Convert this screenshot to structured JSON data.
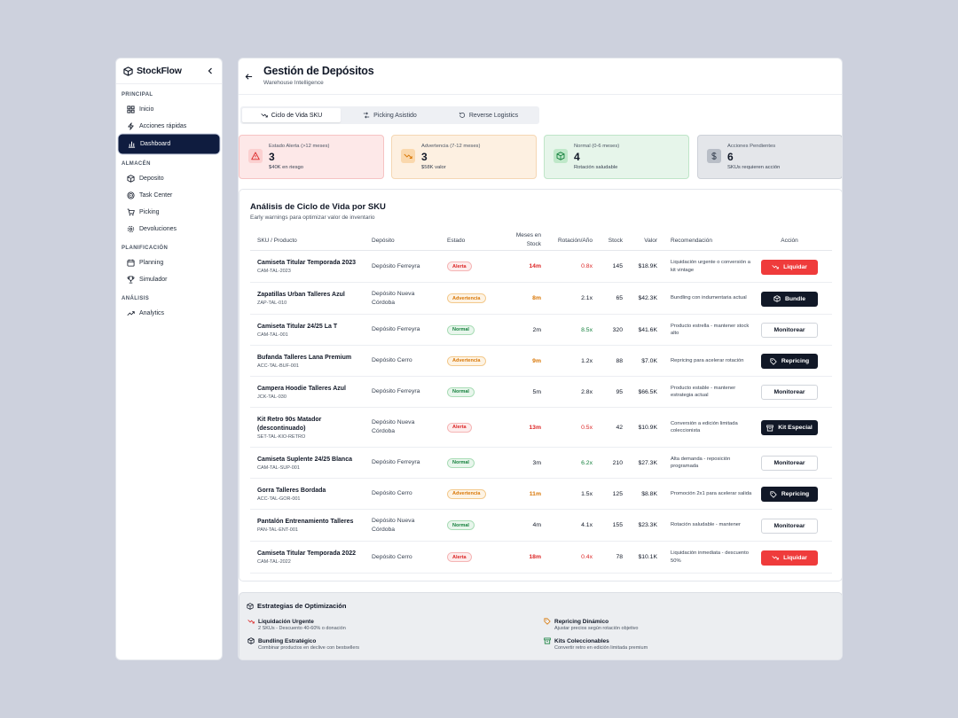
{
  "sidebar": {
    "brand": "StockFlow",
    "sections": [
      {
        "title": "PRINCIPAL",
        "items": [
          {
            "label": "Inicio",
            "icon": "grid-icon"
          },
          {
            "label": "Acciones rápidas",
            "icon": "bolt-icon"
          },
          {
            "label": "Dashboard",
            "icon": "bar-chart-icon",
            "active": true
          }
        ]
      },
      {
        "title": "ALMACÉN",
        "items": [
          {
            "label": "Deposito",
            "icon": "box-icon"
          },
          {
            "label": "Task Center",
            "icon": "target-icon"
          },
          {
            "label": "Picking",
            "icon": "cart-icon"
          },
          {
            "label": "Devoluciones",
            "icon": "gear-icon"
          }
        ]
      },
      {
        "title": "PLANIFICACIÓN",
        "items": [
          {
            "label": "Planning",
            "icon": "calendar-icon"
          },
          {
            "label": "Simulador",
            "icon": "trophy-icon"
          }
        ]
      },
      {
        "title": "ANÁLISIS",
        "items": [
          {
            "label": "Analytics",
            "icon": "trend-up-icon"
          }
        ]
      }
    ]
  },
  "header": {
    "title": "Gestión de Depósitos",
    "subtitle": "Warehouse Intelligence"
  },
  "tabs": [
    {
      "label": "Ciclo de Vida SKU",
      "icon": "trend-down-icon",
      "active": true
    },
    {
      "label": "Picking Asistido",
      "icon": "shuffle-icon"
    },
    {
      "label": "Reverse Logistics",
      "icon": "rotate-icon"
    }
  ],
  "cards": [
    {
      "label": "Estado Alerta (>12 meses)",
      "value": "3",
      "note": "$40K en riesgo",
      "icon": "warning-icon",
      "color": "#dc2626"
    },
    {
      "label": "Advertencia (7-12 meses)",
      "value": "3",
      "note": "$58K valor",
      "icon": "trend-down-icon",
      "color": "#d97706"
    },
    {
      "label": "Normal (0-6 meses)",
      "value": "4",
      "note": "Rotación saludable",
      "icon": "box-icon",
      "color": "#15803d"
    },
    {
      "label": "Acciones Pendientes",
      "value": "6",
      "note": "SKUs requieren acción",
      "icon": "dollar-icon",
      "color": "#374151"
    }
  ],
  "table": {
    "title": "Análisis de Ciclo de Vida por SKU",
    "subtitle": "Early warnings para optimizar valor de inventario",
    "columns": {
      "product": "SKU / Producto",
      "deposit": "Depósito",
      "status": "Estado",
      "months_1": "Meses en",
      "months_2": "Stock",
      "rotation": "Rotación/Año",
      "stock": "Stock",
      "value": "Valor",
      "recommendation": "Recomendación",
      "action": "Acción"
    },
    "rows": [
      {
        "name": "Camiseta Titular Temporada 2023",
        "sku": "CAM-TAL-2023",
        "deposit": "Depósito Ferreyra",
        "status": "Alerta",
        "status_type": "alert",
        "months": "14m",
        "rotation": "0.8x",
        "rotation_type": "alert",
        "stock": "145",
        "value": "$18.9K",
        "recommendation": "Liquidación urgente o conversión a kit vintage",
        "action": "Liquidar",
        "action_type": "red",
        "action_icon": "trend-down-icon"
      },
      {
        "name": "Zapatillas Urban Talleres Azul",
        "sku": "ZAP-TAL-010",
        "deposit": "Depósito Nueva Córdoba",
        "status": "Advertencia",
        "status_type": "warn",
        "months": "8m",
        "rotation": "2.1x",
        "rotation_type": "plain",
        "stock": "65",
        "value": "$42.3K",
        "recommendation": "Bundling con indumentaria actual",
        "action": "Bundle",
        "action_type": "dark",
        "action_icon": "package-icon"
      },
      {
        "name": "Camiseta Titular 24/25 La T",
        "sku": "CAM-TAL-001",
        "deposit": "Depósito Ferreyra",
        "status": "Normal",
        "status_type": "ok",
        "months": "2m",
        "rotation": "8.5x",
        "rotation_type": "ok",
        "stock": "320",
        "value": "$41.6K",
        "recommendation": "Producto estrella - mantener stock alto",
        "action": "Monitorear",
        "action_type": "light",
        "action_icon": ""
      },
      {
        "name": "Bufanda Talleres Lana Premium",
        "sku": "ACC-TAL-BUF-001",
        "deposit": "Depósito Cerro",
        "status": "Advertencia",
        "status_type": "warn",
        "months": "9m",
        "rotation": "1.2x",
        "rotation_type": "plain",
        "stock": "88",
        "value": "$7.0K",
        "recommendation": "Repricing para acelerar rotación",
        "action": "Repricing",
        "action_type": "dark",
        "action_icon": "tag-icon"
      },
      {
        "name": "Campera Hoodie Talleres Azul",
        "sku": "JCK-TAL-030",
        "deposit": "Depósito Ferreyra",
        "status": "Normal",
        "status_type": "ok",
        "months": "5m",
        "rotation": "2.8x",
        "rotation_type": "plain",
        "stock": "95",
        "value": "$66.5K",
        "recommendation": "Producto estable - mantener estrategia actual",
        "action": "Monitorear",
        "action_type": "light",
        "action_icon": ""
      },
      {
        "name": "Kit Retro 90s Matador (descontinuado)",
        "sku": "SET-TAL-KIO-RETRO",
        "deposit": "Depósito Nueva Córdoba",
        "status": "Alerta",
        "status_type": "alert",
        "months": "13m",
        "rotation": "0.5x",
        "rotation_type": "alert",
        "stock": "42",
        "value": "$10.9K",
        "recommendation": "Conversión a edición limitada coleccionista",
        "action": "Kit Especial",
        "action_type": "dark",
        "action_icon": "archive-icon"
      },
      {
        "name": "Camiseta Suplente 24/25 Blanca",
        "sku": "CAM-TAL-SUP-001",
        "deposit": "Depósito Ferreyra",
        "status": "Normal",
        "status_type": "ok",
        "months": "3m",
        "rotation": "6.2x",
        "rotation_type": "ok",
        "stock": "210",
        "value": "$27.3K",
        "recommendation": "Alta demanda - reposición programada",
        "action": "Monitorear",
        "action_type": "light",
        "action_icon": ""
      },
      {
        "name": "Gorra Talleres Bordada",
        "sku": "ACC-TAL-GOR-001",
        "deposit": "Depósito Cerro",
        "status": "Advertencia",
        "status_type": "warn",
        "months": "11m",
        "rotation": "1.5x",
        "rotation_type": "plain",
        "stock": "125",
        "value": "$8.8K",
        "recommendation": "Promoción 2x1 para acelerar salida",
        "action": "Repricing",
        "action_type": "dark",
        "action_icon": "tag-icon"
      },
      {
        "name": "Pantalón Entrenamiento Talleres",
        "sku": "PAN-TAL-ENT-001",
        "deposit": "Depósito Nueva Córdoba",
        "status": "Normal",
        "status_type": "ok",
        "months": "4m",
        "rotation": "4.1x",
        "rotation_type": "plain",
        "stock": "155",
        "value": "$23.3K",
        "recommendation": "Rotación saludable - mantener",
        "action": "Monitorear",
        "action_type": "light",
        "action_icon": ""
      },
      {
        "name": "Camiseta Titular Temporada 2022",
        "sku": "CAM-TAL-2022",
        "deposit": "Depósito Cerro",
        "status": "Alerta",
        "status_type": "alert",
        "months": "18m",
        "rotation": "0.4x",
        "rotation_type": "alert",
        "stock": "78",
        "value": "$10.1K",
        "recommendation": "Liquidación inmediata - descuento 50%",
        "action": "Liquidar",
        "action_type": "red",
        "action_icon": "trend-down-icon"
      }
    ]
  },
  "strategies": {
    "title": "Estrategias de Optimización",
    "items": [
      {
        "title": "Liquidación Urgente",
        "desc": "2 SKUs - Descuento 40-60% o donación",
        "icon": "trend-down-icon",
        "color": "#dc2626"
      },
      {
        "title": "Repricing Dinámico",
        "desc": "Ajustar precios según rotación objetivo",
        "icon": "tag-icon",
        "color": "#d97706"
      },
      {
        "title": "Bundling Estratégico",
        "desc": "Combinar productos en declive con bestsellers",
        "icon": "package-icon",
        "color": "#111827"
      },
      {
        "title": "Kits Coleccionables",
        "desc": "Convertir retro en edición limitada premium",
        "icon": "archive-icon",
        "color": "#15803d"
      }
    ]
  },
  "colors": {
    "alert": "#dc2626",
    "warn": "#d97706",
    "ok": "#15803d",
    "primary": "#0f1c3f"
  }
}
